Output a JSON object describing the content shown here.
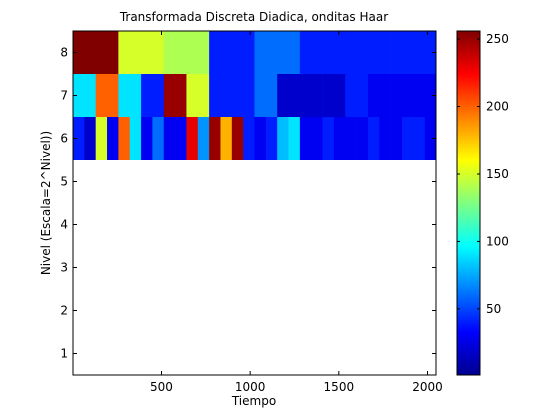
{
  "chart_data": {
    "type": "heatmap",
    "title": "Transformada Discreta Diadica, onditas Haar",
    "xlabel": "Tiempo",
    "ylabel": "Nivel (Escala=2^Nivel))",
    "xlim": [
      1,
      2048
    ],
    "ylim": [
      0.5,
      8.5
    ],
    "xticks": [
      500,
      1000,
      1500,
      2000
    ],
    "yticks": [
      1,
      2,
      3,
      4,
      5,
      6,
      7,
      8
    ],
    "colormap": "jet",
    "clim": [
      1,
      256
    ],
    "colorbar": {
      "ticks": [
        50,
        100,
        150,
        200,
        250
      ],
      "placement": "right"
    },
    "levels": [
      {
        "level": 8,
        "values": [
          256,
          150,
          140,
          40,
          60,
          40,
          40,
          40
        ]
      },
      {
        "level": 7,
        "values": [
          90,
          200,
          90,
          40,
          250,
          150,
          40,
          40,
          60,
          20,
          20,
          20,
          40,
          30,
          30,
          30
        ]
      },
      {
        "level": 6,
        "values": [
          40,
          20,
          150,
          30,
          200,
          90,
          30,
          60,
          30,
          30,
          230,
          70,
          250,
          180,
          250,
          40,
          30,
          40,
          80,
          90,
          30,
          30,
          40,
          30,
          30,
          30,
          40,
          30,
          30,
          40,
          40,
          30
        ]
      }
    ]
  }
}
